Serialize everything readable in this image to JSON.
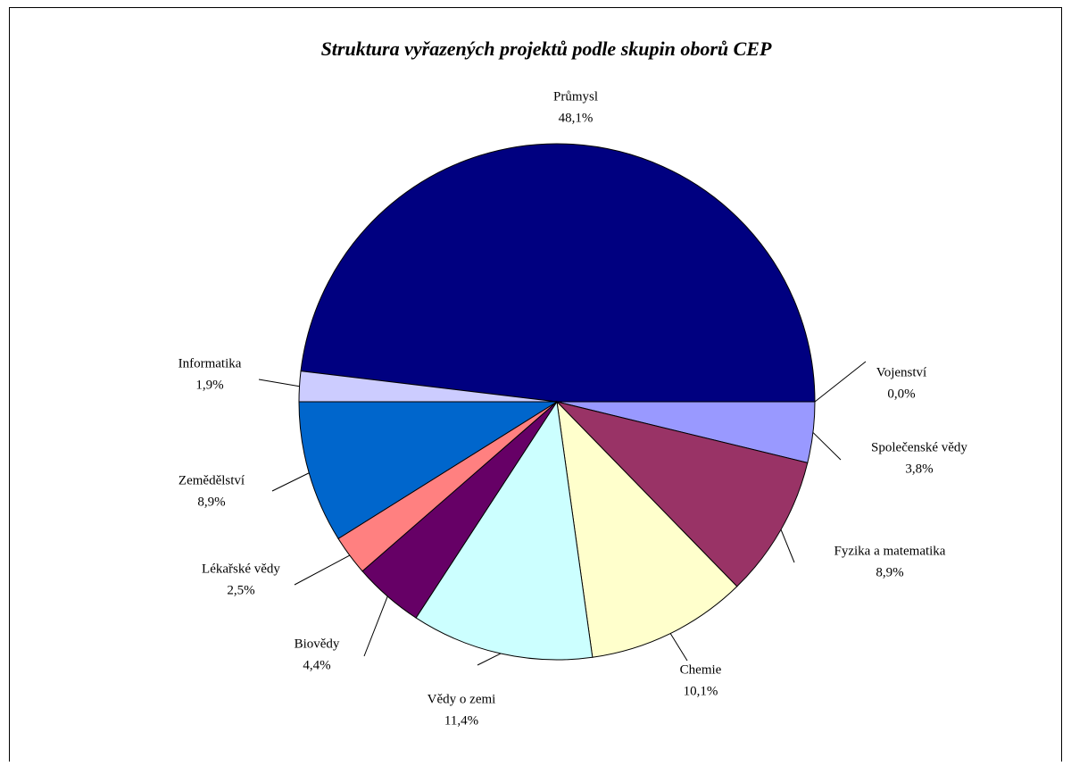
{
  "chart_data": {
    "type": "pie",
    "title": "Struktura vyřazených projektů podle skupin oborů CEP",
    "categories": [
      "Průmysl",
      "Vojenství",
      "Společenské vědy",
      "Fyzika a matematika",
      "Chemie",
      "Vědy o zemi",
      "Biovědy",
      "Lékařské vědy",
      "Zemědělství",
      "Informatika"
    ],
    "values": [
      48.1,
      0.0,
      3.8,
      8.9,
      10.1,
      11.4,
      4.4,
      2.5,
      8.9,
      1.9
    ],
    "value_labels": [
      "48,1%",
      "0,0%",
      "3,8%",
      "8,9%",
      "10,1%",
      "11,4%",
      "4,4%",
      "2,5%",
      "8,9%",
      "1,9%"
    ],
    "colors": [
      "#000080",
      "#ff00ff",
      "#9999ff",
      "#993366",
      "#ffffcc",
      "#ccffff",
      "#660066",
      "#ff8080",
      "#0066cc",
      "#ccccff"
    ]
  }
}
